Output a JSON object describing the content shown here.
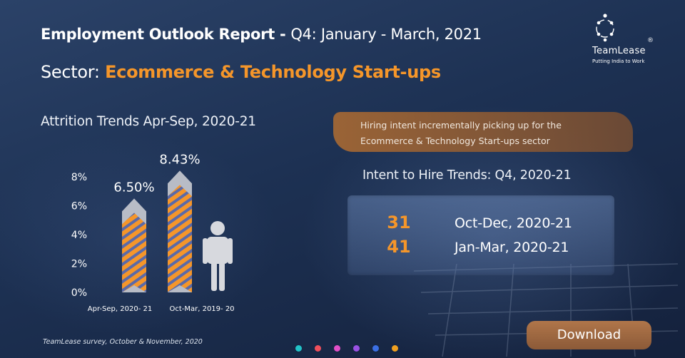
{
  "header": {
    "title_bold": "Employment Outlook Report - ",
    "title_rest": "Q4: January - March, 2021",
    "subtitle_prefix": "Sector: ",
    "subtitle_sector": "Ecommerce & Technology Start-ups"
  },
  "logo": {
    "name": "TeamLease",
    "registered": "®",
    "tagline": "Putting India to Work"
  },
  "chart_data": {
    "type": "bar",
    "title": "Attrition Trends Apr-Sep, 2020-21",
    "categories": [
      "Apr-Sep, 2020- 21",
      "Oct-Mar, 2019- 20"
    ],
    "values": [
      6.5,
      8.43
    ],
    "data_labels": [
      "6.50%",
      "8.43%"
    ],
    "y_ticks": [
      "0%",
      "2%",
      "4%",
      "6%",
      "8%"
    ],
    "ylim": [
      0,
      8
    ],
    "grid": false,
    "colors": {
      "bar_fill": "#f5962a",
      "bar_stripe": "#5b6aa8",
      "bar_cap": "#b8bcc6",
      "person": "#d7d9de"
    }
  },
  "callout": {
    "line1": "Hiring intent incrementally picking up for the",
    "line2": "Ecommerce & Technology Start-ups sector"
  },
  "hire": {
    "title": "Intent to Hire Trends: Q4, 2020-21",
    "rows": [
      {
        "value": "31",
        "label": "Oct-Dec, 2020-21"
      },
      {
        "value": "41",
        "label": "Jan-Mar, 2020-21"
      }
    ]
  },
  "footnote": "TeamLease survey, October & November, 2020",
  "download_label": "Download",
  "carousel": {
    "dot_colors": [
      "#22c3c8",
      "#ef4f5c",
      "#e24fc8",
      "#9a52e4",
      "#3b6fe4",
      "#f0a020"
    ]
  }
}
